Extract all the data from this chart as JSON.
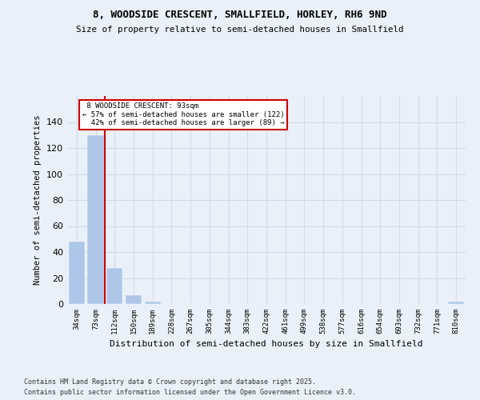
{
  "title1": "8, WOODSIDE CRESCENT, SMALLFIELD, HORLEY, RH6 9ND",
  "title2": "Size of property relative to semi-detached houses in Smallfield",
  "xlabel": "Distribution of semi-detached houses by size in Smallfield",
  "ylabel": "Number of semi-detached properties",
  "categories": [
    "34sqm",
    "73sqm",
    "112sqm",
    "150sqm",
    "189sqm",
    "228sqm",
    "267sqm",
    "305sqm",
    "344sqm",
    "383sqm",
    "422sqm",
    "461sqm",
    "499sqm",
    "538sqm",
    "577sqm",
    "616sqm",
    "654sqm",
    "693sqm",
    "732sqm",
    "771sqm",
    "810sqm"
  ],
  "values": [
    48,
    130,
    28,
    7,
    2,
    0,
    0,
    0,
    0,
    0,
    0,
    0,
    0,
    0,
    0,
    0,
    0,
    0,
    0,
    0,
    2
  ],
  "bar_color": "#aec6e8",
  "red_line_label": "8 WOODSIDE CRESCENT: 93sqm",
  "smaller_pct": 57,
  "smaller_count": 122,
  "larger_pct": 42,
  "larger_count": 89,
  "ylim": [
    0,
    160
  ],
  "yticks": [
    0,
    20,
    40,
    60,
    80,
    100,
    120,
    140,
    160
  ],
  "annotation_box_color": "#ffffff",
  "annotation_box_edge": "#cc0000",
  "grid_color": "#d0dce8",
  "background_color": "#eaf0f8",
  "footer1": "Contains HM Land Registry data © Crown copyright and database right 2025.",
  "footer2": "Contains public sector information licensed under the Open Government Licence v3.0."
}
